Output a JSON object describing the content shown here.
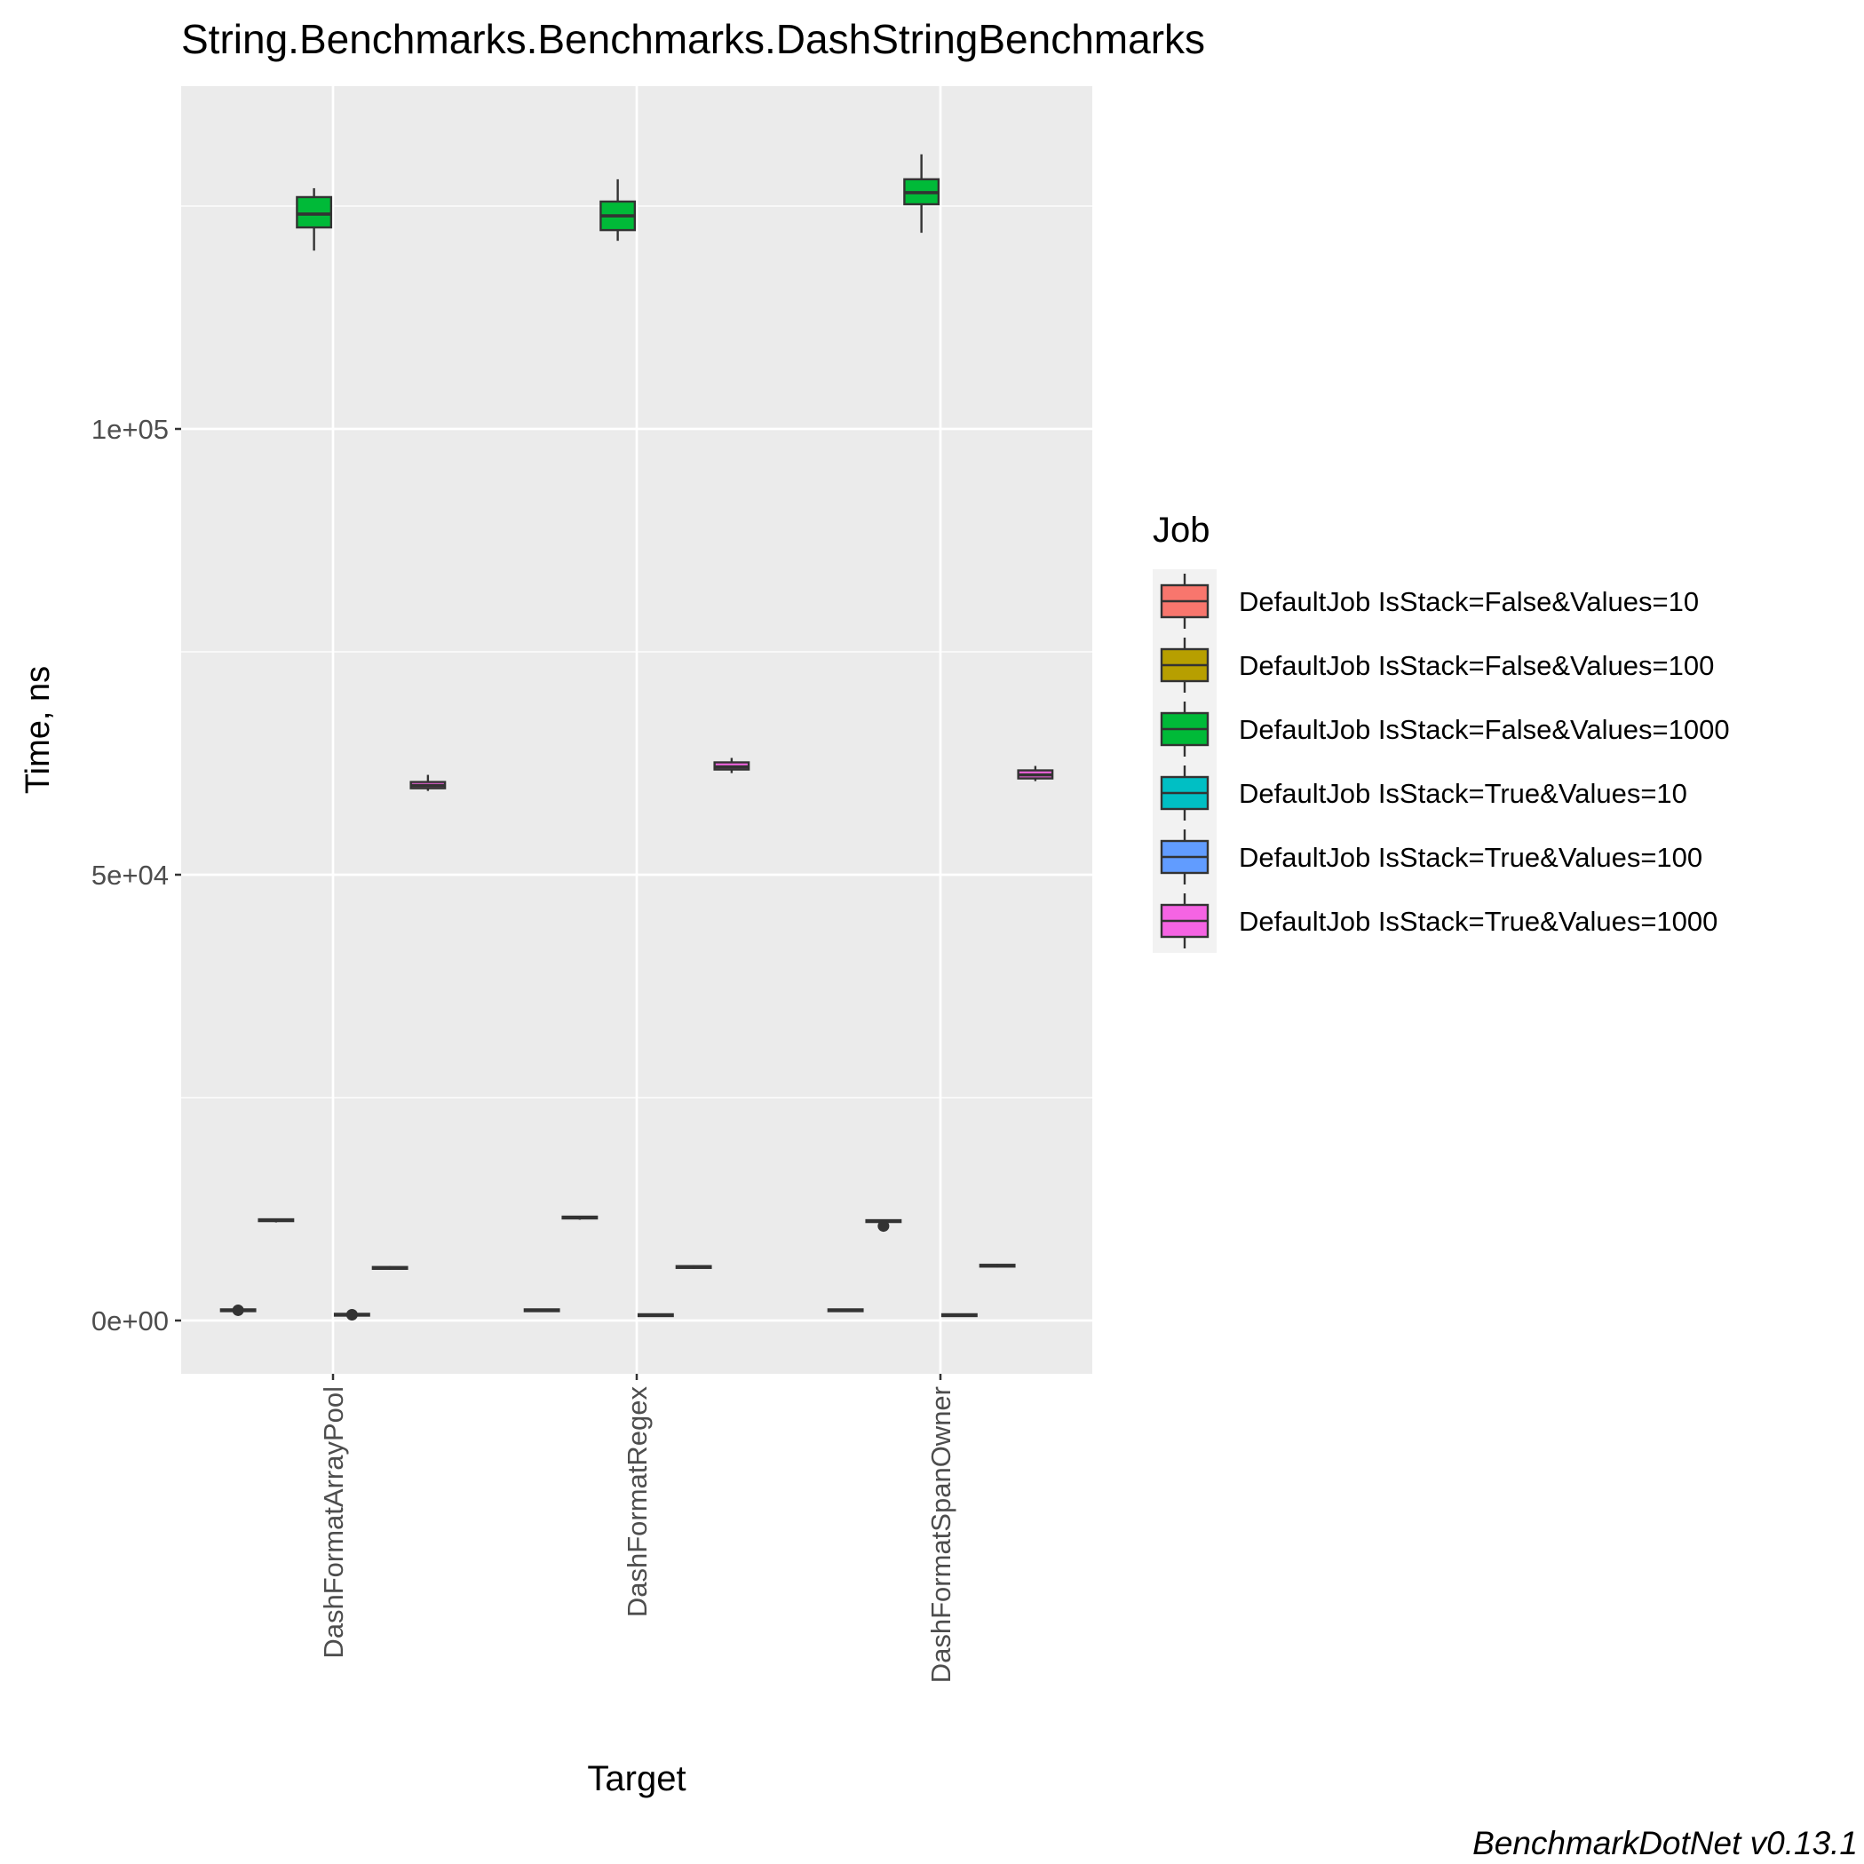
{
  "chart_data": {
    "type": "box",
    "title": "String.Benchmarks.Benchmarks.DashStringBenchmarks",
    "xlabel": "Target",
    "ylabel": "Time, ns",
    "caption": "BenchmarkDotNet v0.13.1",
    "categories": [
      "DashFormatArrayPool",
      "DashFormatRegex",
      "DashFormatSpanOwner"
    ],
    "ylim": [
      -6000,
      138000
    ],
    "yticks": [
      0,
      50000,
      100000
    ],
    "ytick_labels": [
      "0e+00",
      "5e+04",
      "1e+05"
    ],
    "grid": true,
    "legend": {
      "title": "Job",
      "position": "right"
    },
    "series": [
      {
        "name": "DefaultJob IsStack=False&Values=10",
        "color": "#F8766D",
        "boxes": [
          {
            "min": 1000,
            "q1": 1100,
            "median": 1150,
            "q3": 1250,
            "max": 1350,
            "outliers": [
              1150
            ]
          },
          {
            "min": 1050,
            "q1": 1100,
            "median": 1150,
            "q3": 1250,
            "max": 1300,
            "outliers": []
          },
          {
            "min": 1050,
            "q1": 1100,
            "median": 1150,
            "q3": 1250,
            "max": 1300,
            "outliers": []
          }
        ]
      },
      {
        "name": "DefaultJob IsStack=False&Values=100",
        "color": "#B79F00",
        "boxes": [
          {
            "min": 11000,
            "q1": 11150,
            "median": 11250,
            "q3": 11350,
            "max": 11450,
            "outliers": []
          },
          {
            "min": 11300,
            "q1": 11450,
            "median": 11550,
            "q3": 11650,
            "max": 11750,
            "outliers": []
          },
          {
            "min": 10900,
            "q1": 11050,
            "median": 11150,
            "q3": 11250,
            "max": 11350,
            "outliers": [
              10600
            ]
          }
        ]
      },
      {
        "name": "DefaultJob IsStack=False&Values=1000",
        "color": "#00BA38",
        "boxes": [
          {
            "min": 120000,
            "q1": 122600,
            "median": 124100,
            "q3": 126000,
            "max": 127000,
            "outliers": []
          },
          {
            "min": 121100,
            "q1": 122300,
            "median": 123900,
            "q3": 125500,
            "max": 128000,
            "outliers": []
          },
          {
            "min": 122000,
            "q1": 125200,
            "median": 126500,
            "q3": 128000,
            "max": 130800,
            "outliers": []
          }
        ]
      },
      {
        "name": "DefaultJob IsStack=True&Values=10",
        "color": "#00BFC4",
        "boxes": [
          {
            "min": 450,
            "q1": 550,
            "median": 650,
            "q3": 750,
            "max": 850,
            "outliers": [
              650
            ]
          },
          {
            "min": 500,
            "q1": 550,
            "median": 600,
            "q3": 700,
            "max": 750,
            "outliers": []
          },
          {
            "min": 500,
            "q1": 550,
            "median": 600,
            "q3": 700,
            "max": 750,
            "outliers": []
          }
        ]
      },
      {
        "name": "DefaultJob IsStack=True&Values=100",
        "color": "#619CFF",
        "boxes": [
          {
            "min": 5700,
            "q1": 5800,
            "median": 5900,
            "q3": 6000,
            "max": 6100,
            "outliers": []
          },
          {
            "min": 5800,
            "q1": 5900,
            "median": 6000,
            "q3": 6100,
            "max": 6200,
            "outliers": []
          },
          {
            "min": 5950,
            "q1": 6050,
            "median": 6150,
            "q3": 6250,
            "max": 6350,
            "outliers": []
          }
        ]
      },
      {
        "name": "DefaultJob IsStack=True&Values=1000",
        "color": "#F564E3",
        "boxes": [
          {
            "min": 59400,
            "q1": 59700,
            "median": 60000,
            "q3": 60400,
            "max": 61200,
            "outliers": []
          },
          {
            "min": 61400,
            "q1": 61800,
            "median": 62100,
            "q3": 62600,
            "max": 63100,
            "outliers": []
          },
          {
            "min": 60500,
            "q1": 60800,
            "median": 61200,
            "q3": 61700,
            "max": 62200,
            "outliers": []
          }
        ]
      }
    ]
  }
}
